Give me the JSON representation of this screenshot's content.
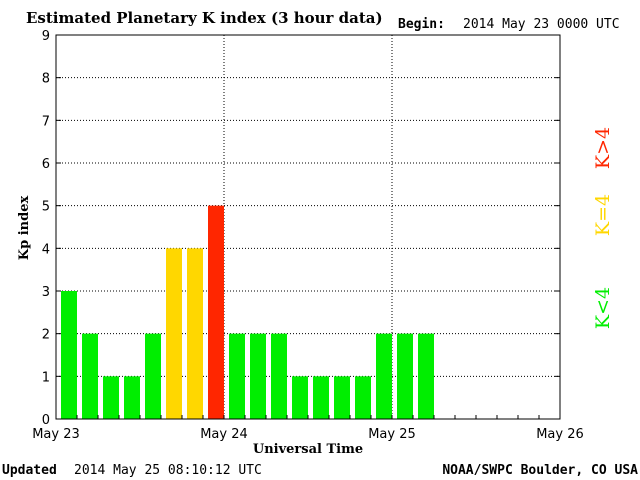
{
  "chart_data": {
    "type": "bar",
    "title": "Estimated Planetary K index (3 hour data)",
    "begin_label": "Begin:",
    "begin_value": "2014 May 23 0000 UTC",
    "ylabel": "Kp index",
    "xlabel": "Universal Time",
    "ylim": [
      0,
      9
    ],
    "yticks": [
      "0",
      "1",
      "2",
      "3",
      "4",
      "5",
      "6",
      "7",
      "8",
      "9"
    ],
    "xtick_labels": [
      "May 23",
      "May 24",
      "May 25",
      "May 26"
    ],
    "interval_hours": 3,
    "grid": true,
    "values": [
      3,
      2,
      1,
      1,
      2,
      4,
      4,
      5,
      2,
      2,
      2,
      1,
      1,
      1,
      1,
      2,
      2,
      2
    ],
    "legend": [
      {
        "label": "K<4",
        "color": "#00ee00"
      },
      {
        "label": "K=4",
        "color": "#ffd700"
      },
      {
        "label": "K>4",
        "color": "#ff2600"
      }
    ],
    "updated_label": "Updated",
    "updated_value": "2014 May 25 08:10:12 UTC",
    "source": "NOAA/SWPC Boulder, CO USA"
  }
}
